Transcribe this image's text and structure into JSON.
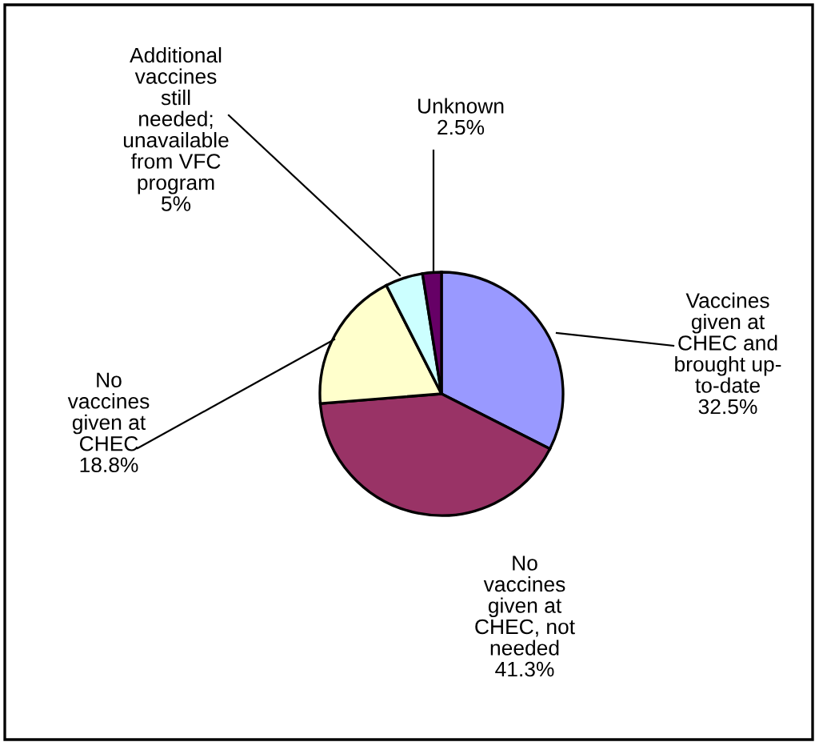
{
  "chart_data": {
    "type": "pie",
    "categories": [
      "Vaccines\ngiven at\nCHEC and\nbrought up-\nto-date",
      "No\nvaccines\ngiven at\nCHEC, not\nneeded",
      "No\nvaccines\ngiven at\nCHEC",
      "Additional\nvaccines\nstill\nneeded;\nunavailable\nfrom VFC\nprogram",
      "Unknown"
    ],
    "values": [
      32.5,
      41.3,
      18.8,
      5,
      2.5
    ],
    "value_labels": [
      "32.5%",
      "41.3%",
      "18.8%",
      "5%",
      "2.5%"
    ],
    "colors": [
      "#9999ff",
      "#993366",
      "#ffffcc",
      "#ccffff",
      "#660066"
    ]
  }
}
